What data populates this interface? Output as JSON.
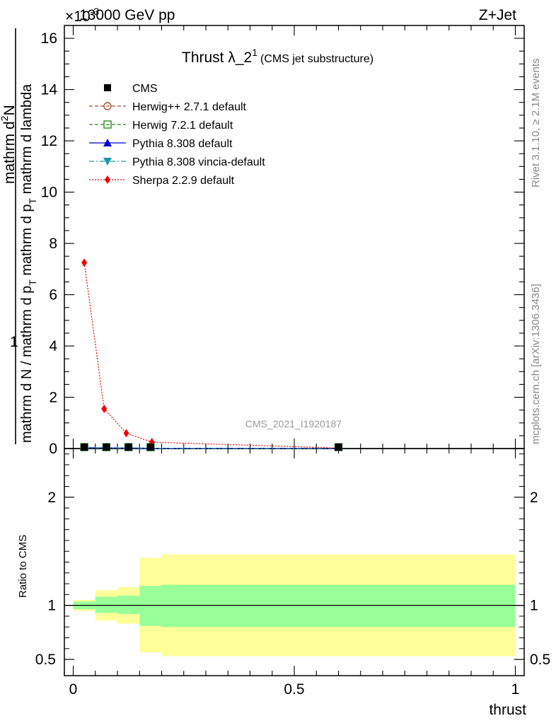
{
  "header": {
    "left_label": "13000 GeV pp",
    "right_label": "Z+Jet",
    "exponent_label": "×10",
    "exponent_power": "-3"
  },
  "side_labels": {
    "rivet": "Rivet 3.1.10, ≥ 2.1M events",
    "mcplots": "mcplots.cern.ch [arXiv:1306.3436]"
  },
  "main_plot": {
    "title_main": "Thrust λ_2",
    "title_sup": "1",
    "title_sub": "(CMS jet substructure)",
    "ylabel_top": "mathrm d",
    "ylabel_top_sup": "2",
    "ylabel_top_tail": "N",
    "ylabel_bottom": "mathrm d N / mathrm d p",
    "ylabel_bottom_sub": "T",
    "ylabel_bottom_mid": " mathrm d p",
    "ylabel_bottom_sub2": "T",
    "ylabel_bottom_tail": " mathrm d lambda",
    "ylabel_one": "1",
    "watermark": "CMS_2021_I1920187"
  },
  "ratio_plot": {
    "ylabel": "Ratio to CMS",
    "xlabel": "thrust"
  },
  "chart_data": [
    {
      "type": "line",
      "panel": "main",
      "xlim": [
        -0.02,
        1.02
      ],
      "ylim": [
        0,
        16.5
      ],
      "y_multiplier": "×10^-3",
      "x_ticks": [
        0,
        0.5,
        1
      ],
      "y_ticks": [
        0,
        2,
        4,
        6,
        8,
        10,
        12,
        14,
        16
      ],
      "y_tick_labels": [
        "0",
        "2",
        "4",
        "6",
        "8",
        "10",
        "12",
        "14",
        "16"
      ],
      "legend_position": "top-left",
      "series": [
        {
          "name": "CMS",
          "color": "#000000",
          "marker": "square-filled",
          "line": "none",
          "x": [
            0.025,
            0.075,
            0.125,
            0.175,
            0.6
          ],
          "y": [
            0.03,
            0.025,
            0.02,
            0.01,
            0.01
          ]
        },
        {
          "name": "Herwig++ 2.7.1 default",
          "color": "#a0522d",
          "marker": "circle-open",
          "line": "dashed",
          "x": [
            0.025,
            0.075,
            0.125,
            0.175,
            0.6
          ],
          "y": [
            0.03,
            0.025,
            0.02,
            0.01,
            0.01
          ]
        },
        {
          "name": "Herwig 7.2.1 default",
          "color": "#2e8b1e",
          "marker": "square-open",
          "line": "dashed",
          "x": [
            0.025,
            0.075,
            0.125,
            0.175,
            0.6
          ],
          "y": [
            0.03,
            0.025,
            0.02,
            0.01,
            0.01
          ]
        },
        {
          "name": "Pythia 8.308 default",
          "color": "#0000cc",
          "marker": "triangle-up",
          "line": "solid",
          "x": [
            0.025,
            0.075,
            0.125,
            0.175,
            0.6
          ],
          "y": [
            0.03,
            0.025,
            0.02,
            0.01,
            0.01
          ]
        },
        {
          "name": "Pythia 8.308 vincia-default",
          "color": "#1a9aa8",
          "marker": "triangle-down",
          "line": "dashdot",
          "x": [
            0.025,
            0.075,
            0.125,
            0.175,
            0.6
          ],
          "y": [
            0.03,
            0.025,
            0.02,
            0.01,
            0.01
          ]
        },
        {
          "name": "Sherpa 2.2.9 default",
          "color": "#ee0000",
          "marker": "diamond",
          "line": "dotted",
          "x": [
            0.025,
            0.07,
            0.12,
            0.178,
            0.6
          ],
          "y": [
            7.25,
            1.55,
            0.6,
            0.25,
            0.02
          ]
        }
      ]
    },
    {
      "type": "area",
      "panel": "ratio",
      "xlim": [
        -0.02,
        1.02
      ],
      "ylim": [
        0.35,
        2.45
      ],
      "x_ticks": [
        0,
        0.5,
        1
      ],
      "x_tick_labels": [
        "0",
        "0.5",
        "1"
      ],
      "y_ticks": [
        0.5,
        1,
        2
      ],
      "y_tick_labels": [
        "0.5",
        "1",
        "2"
      ],
      "reference_line": 1,
      "bins": [
        {
          "x0": 0.0,
          "x1": 0.05,
          "inner": [
            0.965,
            1.035
          ],
          "outer": [
            0.95,
            1.05
          ]
        },
        {
          "x0": 0.05,
          "x1": 0.1,
          "inner": [
            0.93,
            1.08
          ],
          "outer": [
            0.86,
            1.14
          ]
        },
        {
          "x0": 0.1,
          "x1": 0.15,
          "inner": [
            0.92,
            1.09
          ],
          "outer": [
            0.83,
            1.17
          ]
        },
        {
          "x0": 0.15,
          "x1": 0.2,
          "inner": [
            0.81,
            1.18
          ],
          "outer": [
            0.565,
            1.44
          ]
        },
        {
          "x0": 0.2,
          "x1": 1.0,
          "inner": [
            0.8,
            1.19
          ],
          "outer": [
            0.53,
            1.47
          ]
        }
      ],
      "colors": {
        "inner": "#99ff99",
        "outer": "#ffff99",
        "line": "#000000"
      }
    }
  ]
}
